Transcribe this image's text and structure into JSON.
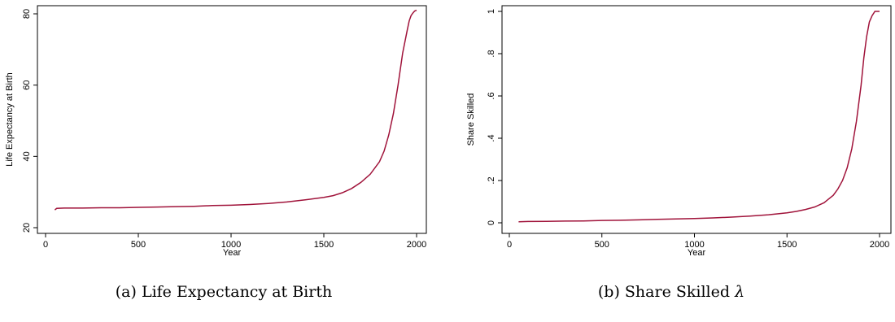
{
  "chart_data": [
    {
      "type": "line",
      "title": "",
      "xlabel": "Year",
      "ylabel": "Life Expectancy at Birth",
      "xlim": [
        0,
        2000
      ],
      "ylim": [
        20,
        80
      ],
      "x_ticks": [
        0,
        500,
        1000,
        1500,
        2000
      ],
      "x_tick_labels": [
        "0",
        "500",
        "1000",
        "1500",
        "2000"
      ],
      "y_ticks": [
        20,
        40,
        60,
        80
      ],
      "y_tick_labels": [
        "20",
        "40",
        "60",
        "80"
      ],
      "grid": false,
      "line_color": "#a0133a",
      "series": [
        {
          "x": [
            50,
            60,
            100,
            200,
            300,
            400,
            500,
            600,
            700,
            800,
            900,
            1000,
            1100,
            1200,
            1300,
            1400,
            1500,
            1550,
            1600,
            1650,
            1700,
            1750,
            1800,
            1825,
            1850,
            1875,
            1900,
            1925,
            1950,
            1960,
            1970,
            1980,
            1990,
            2000
          ],
          "y": [
            25.0,
            25.4,
            25.5,
            25.5,
            25.6,
            25.6,
            25.7,
            25.8,
            25.9,
            26.0,
            26.2,
            26.3,
            26.5,
            26.8,
            27.2,
            27.8,
            28.5,
            29.0,
            29.8,
            31.0,
            32.7,
            35.0,
            38.5,
            41.5,
            46.0,
            52.0,
            60.0,
            69.0,
            75.5,
            78.0,
            79.5,
            80.2,
            80.8,
            81.0
          ]
        }
      ]
    },
    {
      "type": "line",
      "title": "",
      "xlabel": "Year",
      "ylabel": "Share Skilled",
      "xlim": [
        0,
        2000
      ],
      "ylim": [
        0,
        1
      ],
      "x_ticks": [
        0,
        500,
        1000,
        1500,
        2000
      ],
      "x_tick_labels": [
        "0",
        "500",
        "1000",
        "1500",
        "2000"
      ],
      "y_ticks": [
        0,
        0.2,
        0.4,
        0.6,
        0.8,
        1
      ],
      "y_tick_labels": [
        "0",
        ".2",
        ".4",
        ".6",
        ".8",
        "1"
      ],
      "grid": false,
      "line_color": "#a0133a",
      "series": [
        {
          "x": [
            50,
            100,
            200,
            300,
            400,
            500,
            600,
            700,
            800,
            900,
            1000,
            1100,
            1200,
            1300,
            1400,
            1500,
            1550,
            1600,
            1650,
            1700,
            1750,
            1775,
            1800,
            1825,
            1850,
            1875,
            1900,
            1915,
            1930,
            1945,
            1960,
            1975,
            1990,
            2000
          ],
          "y": [
            0.005,
            0.006,
            0.007,
            0.008,
            0.009,
            0.011,
            0.012,
            0.014,
            0.016,
            0.018,
            0.02,
            0.023,
            0.027,
            0.032,
            0.038,
            0.047,
            0.054,
            0.063,
            0.075,
            0.095,
            0.13,
            0.16,
            0.2,
            0.26,
            0.35,
            0.48,
            0.65,
            0.78,
            0.88,
            0.95,
            0.98,
            1.0,
            1.0,
            1.0
          ]
        }
      ]
    }
  ],
  "captions": {
    "a": "(a) Life Expectancy at Birth",
    "b_text": "(b) Share Skilled ",
    "b_symbol": "λ"
  }
}
